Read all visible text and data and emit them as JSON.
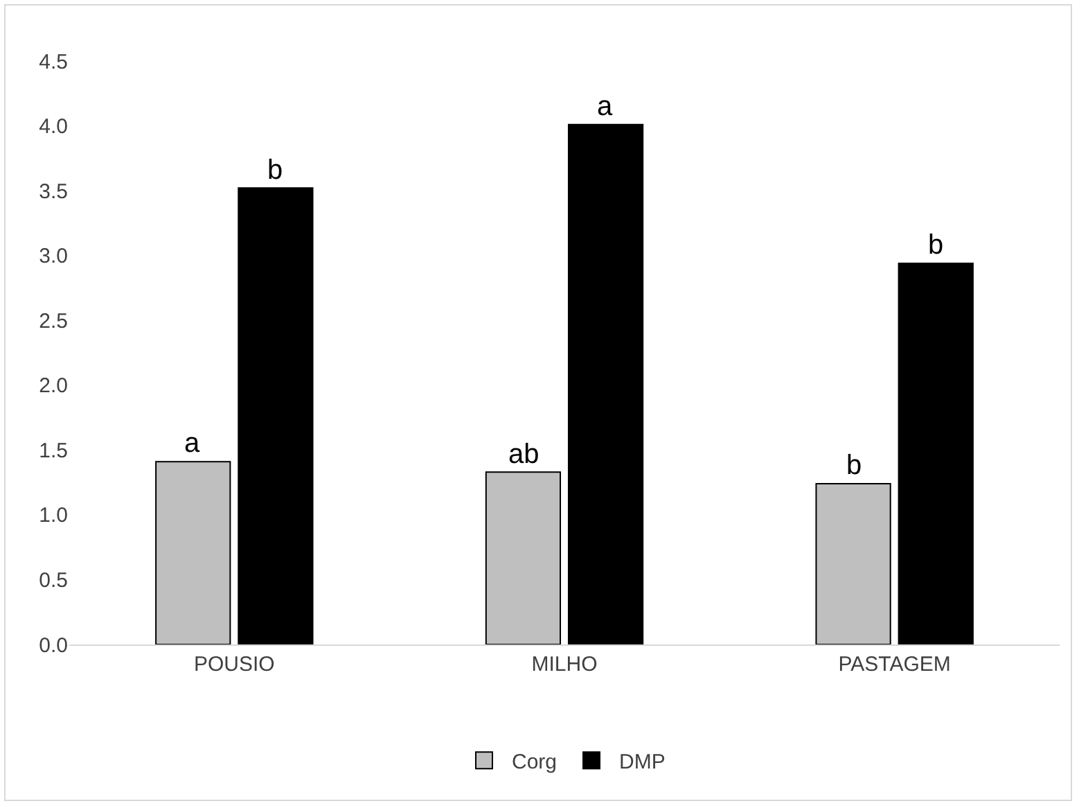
{
  "chart_data": {
    "type": "bar",
    "categories": [
      "POUSIO",
      "MILHO",
      "PASTAGEM"
    ],
    "series": [
      {
        "name": "Corg",
        "color": "#bfbfbf",
        "values": [
          1.41,
          1.33,
          1.24
        ]
      },
      {
        "name": "DMP",
        "color": "#000000",
        "values": [
          3.52,
          4.01,
          2.94
        ]
      }
    ],
    "ylim": [
      0,
      4.5
    ],
    "yticks": [
      {
        "value": 0,
        "label": "0.0"
      },
      0.5,
      {
        "value": 1,
        "label": "1.0"
      },
      1.5,
      {
        "value": 2,
        "label": "2.0"
      },
      2.5,
      {
        "value": 3,
        "label": "3.0"
      },
      3.5,
      {
        "value": 4,
        "label": "4.0"
      },
      4.5
    ],
    "grid": false,
    "legend": "bottom",
    "annotations": [
      {
        "text": "a",
        "x": "POUSIO",
        "y": 1.41
      },
      {
        "text": "b",
        "x": "POUSIO",
        "y": 3.52
      },
      {
        "text": "ab",
        "x": "MILHO",
        "y": 1.33
      },
      {
        "text": "a",
        "x": "MILHO",
        "y": 4.01
      },
      {
        "text": "b",
        "x": "PASTAGEM",
        "y": 1.24
      },
      {
        "text": "b",
        "x": "PASTAGEM",
        "y": 2.94
      }
    ]
  }
}
